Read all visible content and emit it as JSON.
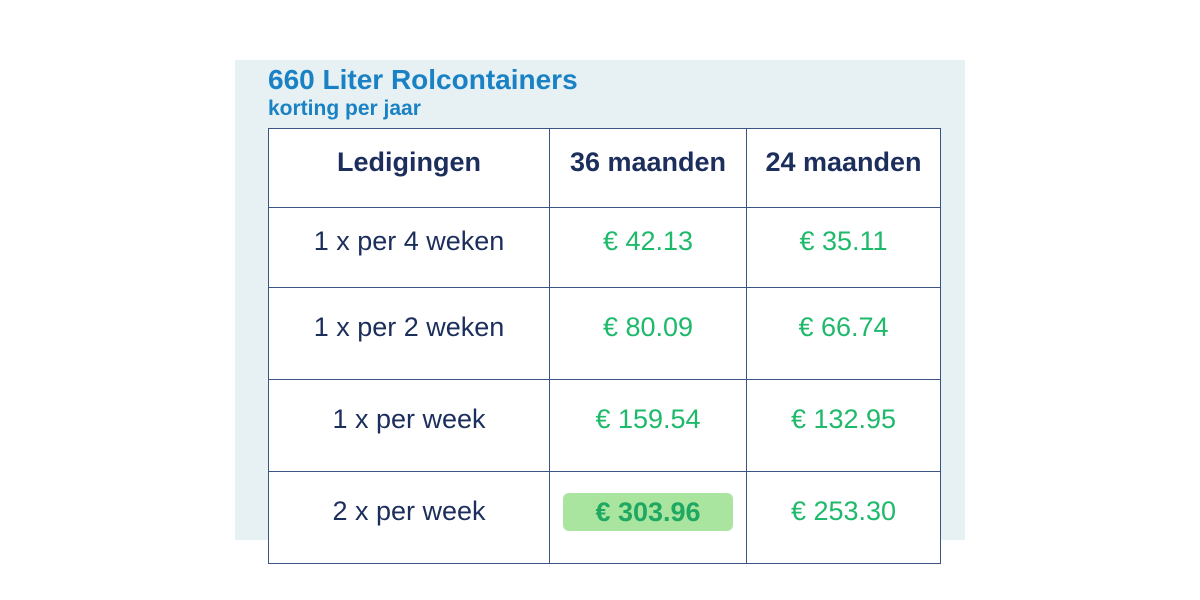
{
  "header": {
    "title": "660 Liter Rolcontainers",
    "subtitle": "korting per jaar"
  },
  "table": {
    "columns": [
      "Ledigingen",
      "36 maanden",
      "24 maanden"
    ],
    "rows": [
      [
        "1 x per 4 weken",
        "€ 42.13",
        "€ 35.11"
      ],
      [
        "1 x per 2 weken",
        "€ 80.09",
        "€ 66.74"
      ],
      [
        "1 x per week",
        "€ 159.54",
        "€ 132.95"
      ],
      [
        "2 x per week",
        "€ 303.96",
        "€ 253.30"
      ]
    ]
  }
}
